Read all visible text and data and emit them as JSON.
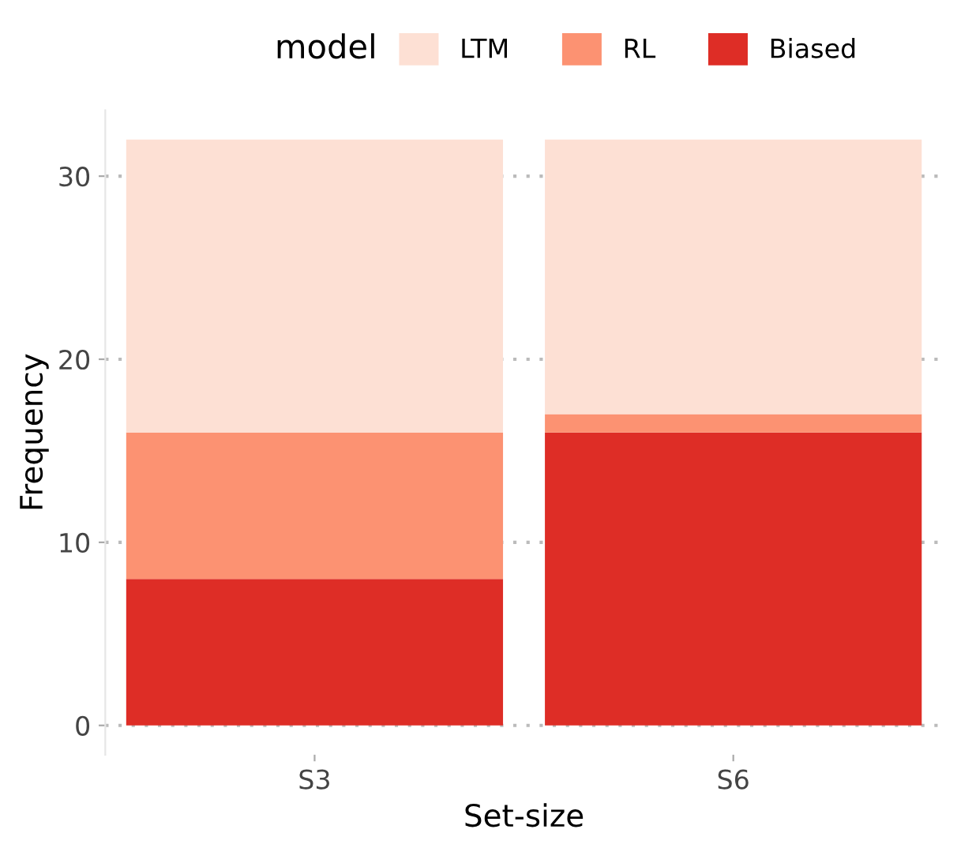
{
  "chart_data": {
    "type": "bar",
    "stacked": true,
    "xlabel": "Set-size",
    "ylabel": "Frequency",
    "legend_title": "model",
    "legend": "top",
    "categories": [
      "S3",
      "S6"
    ],
    "series": [
      {
        "name": "Biased",
        "color": "#de2d26",
        "values": [
          8,
          16
        ]
      },
      {
        "name": "RL",
        "color": "#fc9272",
        "values": [
          8,
          1
        ]
      },
      {
        "name": "LTM",
        "color": "#fde0d4",
        "values": [
          16,
          15
        ]
      }
    ],
    "ylim": [
      -1.6,
      33.6
    ],
    "yticks": [
      0,
      10,
      20,
      30
    ],
    "grid": "y"
  }
}
